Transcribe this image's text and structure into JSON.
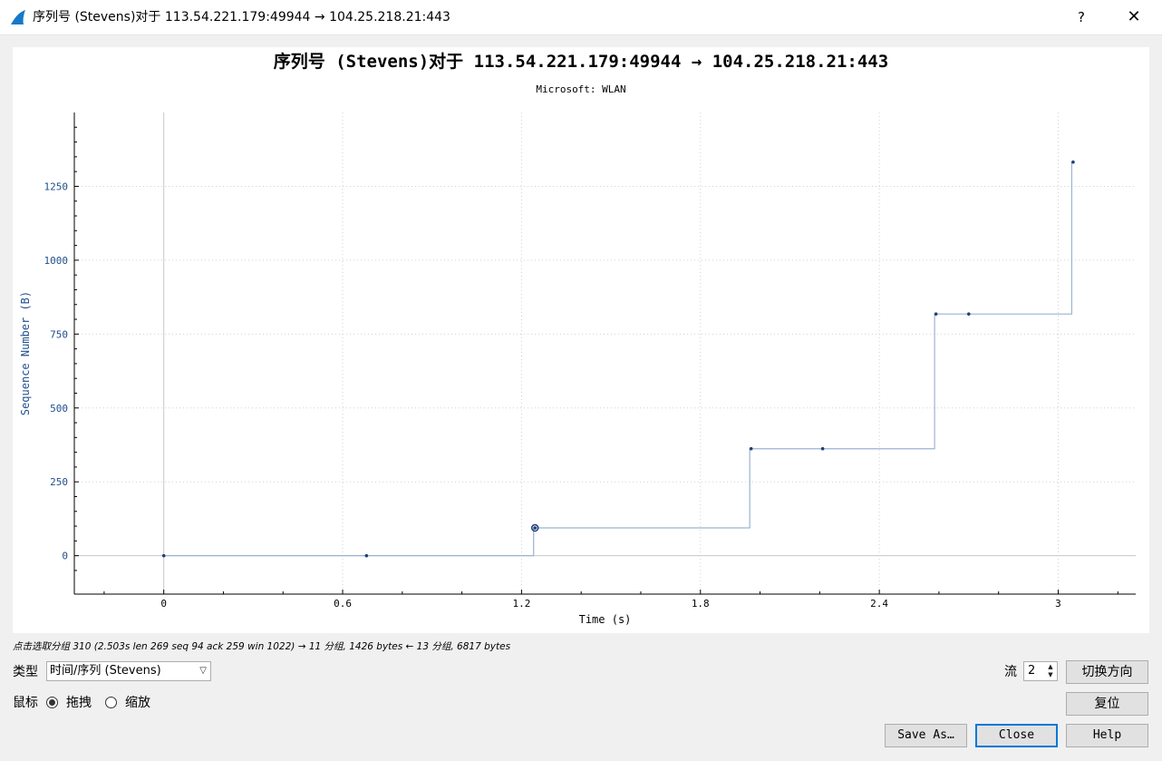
{
  "window": {
    "title": "序列号 (Stevens)对于 113.54.221.179:49944 → 104.25.218.21:443",
    "help_label": "?",
    "close_label": "✕"
  },
  "chart_data": {
    "type": "line",
    "title": "序列号 (Stevens)对于 113.54.221.179:49944 → 104.25.218.21:443",
    "subtitle": "Microsoft: WLAN",
    "xlabel": "Time (s)",
    "ylabel": "Sequence Number (B)",
    "xlim": [
      -0.3,
      3.26
    ],
    "ylim": [
      -130,
      1500
    ],
    "x_ticks": [
      0,
      0.6,
      1.2,
      1.8,
      2.4,
      3
    ],
    "x_tick_labels": [
      "0",
      "0.6",
      "1.2",
      "1.8",
      "2.4",
      "3"
    ],
    "y_ticks": [
      0,
      250,
      500,
      750,
      1000,
      1250
    ],
    "y_tick_labels": [
      "0",
      "250",
      "500",
      "750",
      "1000",
      "1250"
    ],
    "grid": true,
    "line_color": "#9bb4d0",
    "point_color": "#1f3f78",
    "series": [
      {
        "x": [
          0,
          0.68,
          1.245,
          1.97,
          2.21,
          2.59,
          2.7,
          3.05
        ],
        "y": [
          0,
          0,
          94,
          362,
          362,
          818,
          818,
          1332
        ]
      }
    ],
    "selected_point": {
      "x": 1.245,
      "y": 94
    }
  },
  "status_text": "点击选取分组 310 (2.503s len 269 seq 94 ack 259 win 1022) → 11 分组, 1426 bytes ← 13 分组, 6817 bytes",
  "controls": {
    "type_label": "类型",
    "type_value": "时间/序列 (Stevens)",
    "mouse_label": "鼠标",
    "drag_label": "拖拽",
    "zoom_label": "缩放",
    "drag_checked": true,
    "stream_label": "流",
    "stream_value": "2",
    "switch_direction": "切换方向",
    "reset": "复位",
    "save_as": "Save As…",
    "close": "Close",
    "help": "Help"
  }
}
